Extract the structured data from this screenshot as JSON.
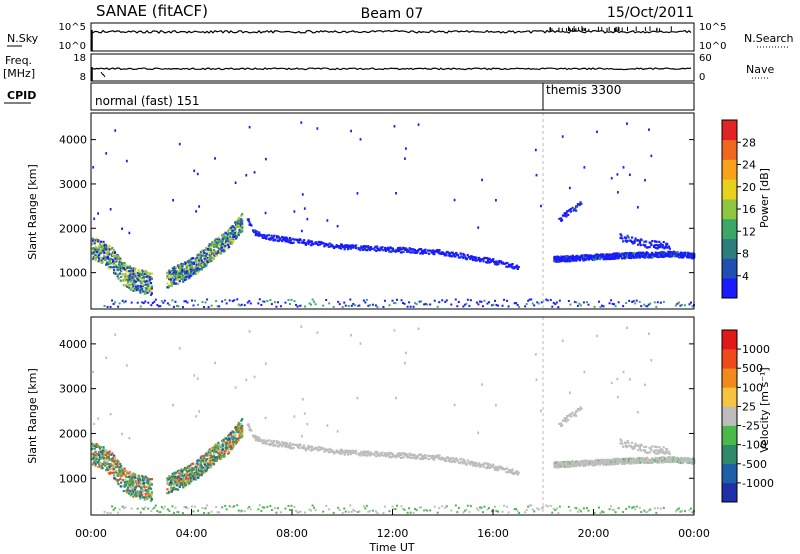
{
  "header": {
    "station": "SANAE (fitACF)",
    "beam": "Beam 07",
    "date": "15/Oct/2011"
  },
  "strips": {
    "nsky_label": "N.Sky",
    "nsky_ticks": [
      "10^5",
      "10^0"
    ],
    "nsearch_label": "N.Search",
    "nsearch_ticks": [
      "10^5",
      "10^0"
    ],
    "freq_label_1": "Freq.",
    "freq_label_2": "[MHz]",
    "freq_ticks": [
      "18",
      "8"
    ],
    "nave_label": "Nave",
    "nave_ticks": [
      "60",
      "0"
    ],
    "cpid_label": "CPID",
    "cpid_segments": [
      {
        "label": "normal (fast) 151",
        "start_hour": 0
      },
      {
        "label": "themis 3300",
        "start_hour": 18
      }
    ]
  },
  "chart_data": [
    {
      "type": "heatmap",
      "name": "power",
      "ylabel": "Slant Range [km]",
      "xlim": [
        0,
        24
      ],
      "ylim": [
        180,
        4600
      ],
      "yticks": [
        "1000",
        "2000",
        "3000",
        "4000"
      ],
      "colorbar": {
        "label": "Power [dB]",
        "tick_labels": [
          "4",
          "8",
          "12",
          "16",
          "20",
          "24",
          "28"
        ],
        "colors": [
          "#1a1aff",
          "#1f4fb0",
          "#2e7d7d",
          "#3da865",
          "#8ec63f",
          "#e8d21e",
          "#f7a21a",
          "#f0671e",
          "#e02424"
        ]
      },
      "series": [
        {
          "x": [
            0.0,
            0.5,
            0.9,
            1.2,
            1.6,
            2.0,
            2.4
          ],
          "y": [
            1550,
            1450,
            1250,
            1000,
            850,
            800,
            750
          ]
        },
        {
          "x": [
            3.0,
            3.6,
            4.2,
            4.8,
            5.4,
            6.0
          ],
          "y": [
            850,
            1000,
            1200,
            1500,
            1750,
            2150
          ]
        },
        {
          "x": [
            6.2,
            6.5,
            7.0,
            8.0,
            10.0,
            12.0,
            14.0,
            16.0,
            17.0
          ],
          "y": [
            2200,
            1900,
            1800,
            1720,
            1580,
            1520,
            1450,
            1250,
            1100
          ]
        },
        {
          "x": [
            18.4,
            19.0,
            20.0,
            21.0,
            22.0,
            23.0,
            24.0
          ],
          "y": [
            1300,
            1320,
            1350,
            1380,
            1400,
            1420,
            1380
          ]
        },
        {
          "x": [
            18.6,
            19.5
          ],
          "y": [
            2200,
            2550
          ]
        },
        {
          "x": [
            21.0,
            22.0,
            23.0
          ],
          "y": [
            1800,
            1650,
            1600
          ]
        }
      ]
    },
    {
      "type": "heatmap",
      "name": "velocity",
      "ylabel": "Slant Range [km]",
      "xlabel": "Time UT",
      "xlim": [
        0,
        24
      ],
      "ylim": [
        180,
        4600
      ],
      "xticks": [
        "00:00",
        "04:00",
        "08:00",
        "12:00",
        "16:00",
        "20:00",
        "00:00"
      ],
      "yticks": [
        "1000",
        "2000",
        "3000",
        "4000"
      ],
      "colorbar": {
        "label": "Velocity  [m s⁻¹]",
        "tick_labels": [
          "1000",
          "500",
          "100",
          "25",
          "-25",
          "-100",
          "-500",
          "-1000"
        ],
        "colors": [
          "#1e2fa8",
          "#1f5fa8",
          "#2e8a6a",
          "#4bb84a",
          "#bdbdbd",
          "#f5c542",
          "#f08a1c",
          "#f04a1c",
          "#e01818"
        ]
      }
    }
  ]
}
